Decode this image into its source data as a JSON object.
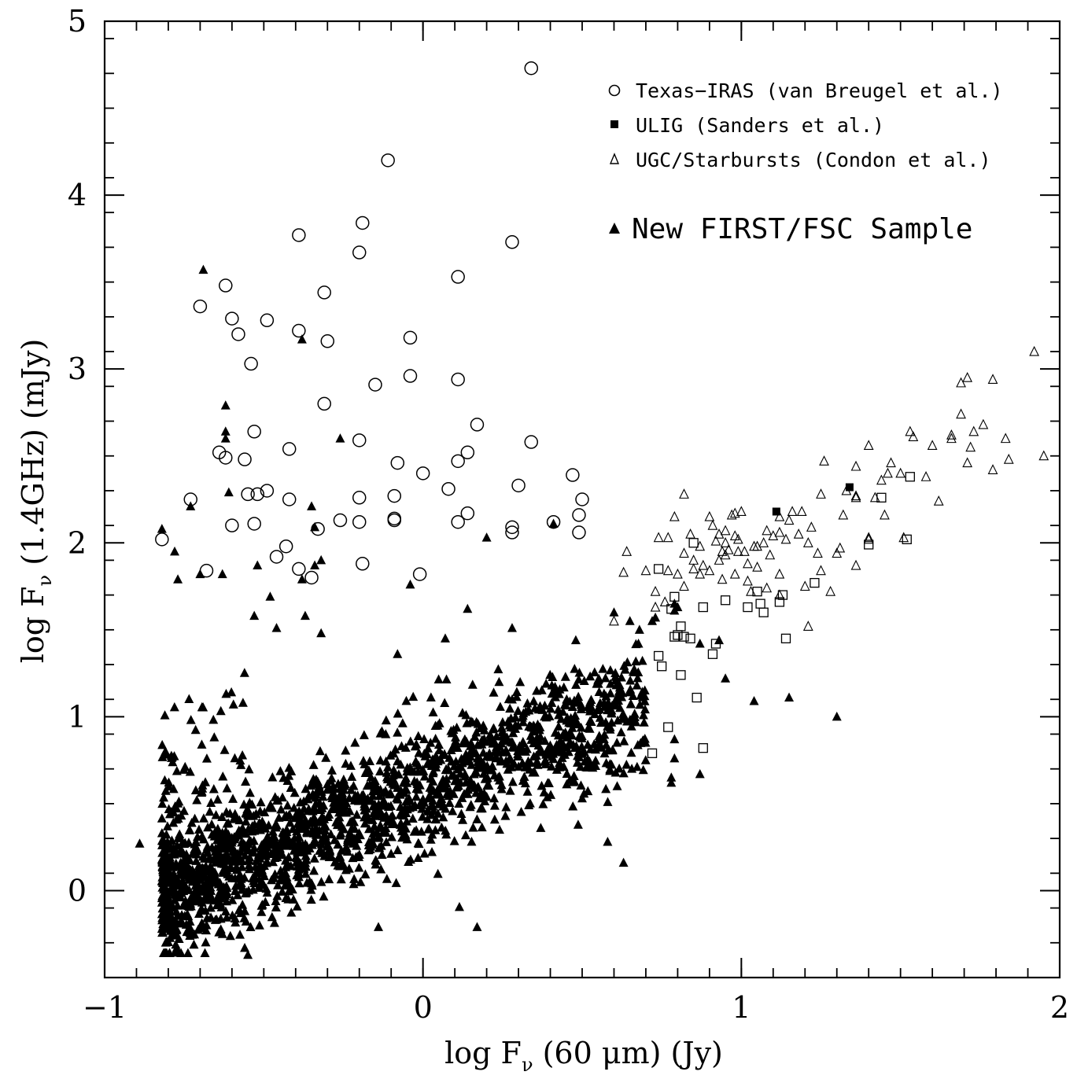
{
  "chart_data": {
    "type": "scatter",
    "xlabel_parts": [
      "log F",
      "ν",
      " (60 ",
      "μ",
      "m) (Jy)"
    ],
    "ylabel_parts": [
      "log F",
      "ν",
      " (1.4GHz) (mJy)"
    ],
    "xlim": [
      -1,
      2
    ],
    "ylim": [
      -0.5,
      5
    ],
    "x_ticks": [
      {
        "value": -1,
        "label": "−1"
      },
      {
        "value": 0,
        "label": "0"
      },
      {
        "value": 1,
        "label": "1"
      },
      {
        "value": 2,
        "label": "2"
      }
    ],
    "y_ticks": [
      {
        "value": 0,
        "label": "0"
      },
      {
        "value": 1,
        "label": "1"
      },
      {
        "value": 2,
        "label": "2"
      },
      {
        "value": 3,
        "label": "3"
      },
      {
        "value": 4,
        "label": "4"
      },
      {
        "value": 5,
        "label": "5"
      }
    ],
    "x_minor_step": 0.1,
    "y_minor_step": 0.2,
    "grid": false,
    "legend_placement": "top-right",
    "legend": [
      {
        "marker": "open-circle",
        "label": "Texas−IRAS (van Breugel et al.)"
      },
      {
        "marker": "filled-square",
        "label": "ULIG (Sanders et al.)"
      },
      {
        "marker": "open-triangle",
        "label": "UGC/Starbursts (Condon et al.)"
      },
      {
        "marker": "filled-triangle",
        "label": "New FIRST/FSC Sample"
      }
    ],
    "series": [
      {
        "name": "Texas−IRAS (van Breugel et al.)",
        "marker": "open-circle",
        "points": [
          [
            0.34,
            4.73
          ],
          [
            -0.11,
            4.2
          ],
          [
            -0.19,
            3.84
          ],
          [
            -0.39,
            3.77
          ],
          [
            0.28,
            3.73
          ],
          [
            -0.2,
            3.67
          ],
          [
            0.11,
            3.53
          ],
          [
            -0.62,
            3.48
          ],
          [
            -0.7,
            3.36
          ],
          [
            -0.31,
            3.44
          ],
          [
            -0.6,
            3.29
          ],
          [
            -0.49,
            3.28
          ],
          [
            -0.39,
            3.22
          ],
          [
            -0.58,
            3.2
          ],
          [
            -0.3,
            3.16
          ],
          [
            -0.04,
            3.18
          ],
          [
            -0.54,
            3.03
          ],
          [
            -0.04,
            2.96
          ],
          [
            0.11,
            2.94
          ],
          [
            -0.15,
            2.91
          ],
          [
            -0.31,
            2.8
          ],
          [
            0.17,
            2.68
          ],
          [
            -0.53,
            2.64
          ],
          [
            -0.64,
            2.52
          ],
          [
            -0.62,
            2.49
          ],
          [
            -0.2,
            2.59
          ],
          [
            0.34,
            2.58
          ],
          [
            0.14,
            2.52
          ],
          [
            -0.42,
            2.54
          ],
          [
            -0.56,
            2.48
          ],
          [
            0.11,
            2.47
          ],
          [
            -0.08,
            2.46
          ],
          [
            0.0,
            2.4
          ],
          [
            0.47,
            2.39
          ],
          [
            0.3,
            2.33
          ],
          [
            0.08,
            2.31
          ],
          [
            -0.49,
            2.3
          ],
          [
            -0.55,
            2.28
          ],
          [
            -0.52,
            2.28
          ],
          [
            -0.73,
            2.25
          ],
          [
            -0.42,
            2.25
          ],
          [
            -0.2,
            2.26
          ],
          [
            -0.09,
            2.27
          ],
          [
            0.5,
            2.25
          ],
          [
            0.14,
            2.17
          ],
          [
            0.49,
            2.16
          ],
          [
            -0.09,
            2.14
          ],
          [
            -0.09,
            2.13
          ],
          [
            -0.26,
            2.13
          ],
          [
            -0.2,
            2.12
          ],
          [
            0.11,
            2.12
          ],
          [
            0.41,
            2.12
          ],
          [
            -0.6,
            2.1
          ],
          [
            -0.53,
            2.11
          ],
          [
            -0.33,
            2.08
          ],
          [
            0.28,
            2.09
          ],
          [
            0.28,
            2.06
          ],
          [
            0.49,
            2.06
          ],
          [
            -0.82,
            2.02
          ],
          [
            -0.43,
            1.98
          ],
          [
            -0.46,
            1.92
          ],
          [
            -0.19,
            1.88
          ],
          [
            -0.68,
            1.84
          ],
          [
            -0.39,
            1.85
          ],
          [
            -0.35,
            1.8
          ],
          [
            -0.01,
            1.82
          ]
        ]
      },
      {
        "name": "ULIG (Sanders et al.)",
        "marker": "filled-square",
        "points": [
          [
            1.34,
            2.32
          ],
          [
            1.11,
            2.18
          ]
        ]
      },
      {
        "name": "",
        "marker": "open-square",
        "points": [
          [
            1.53,
            2.38
          ],
          [
            1.44,
            2.26
          ],
          [
            1.4,
            1.99
          ],
          [
            1.52,
            2.02
          ],
          [
            1.23,
            1.77
          ],
          [
            1.06,
            1.65
          ],
          [
            1.07,
            1.6
          ],
          [
            1.12,
            1.66
          ],
          [
            1.05,
            1.72
          ],
          [
            0.95,
            1.67
          ],
          [
            0.81,
            1.52
          ],
          [
            0.79,
            1.46
          ],
          [
            0.8,
            1.47
          ],
          [
            0.82,
            1.46
          ],
          [
            0.84,
            1.45
          ],
          [
            0.88,
            1.63
          ],
          [
            0.92,
            1.42
          ],
          [
            0.91,
            1.36
          ],
          [
            0.74,
            1.35
          ],
          [
            0.75,
            1.29
          ],
          [
            0.81,
            1.24
          ],
          [
            0.86,
            1.11
          ],
          [
            0.77,
            0.94
          ],
          [
            0.88,
            0.82
          ],
          [
            0.72,
            0.79
          ],
          [
            0.79,
            1.69
          ],
          [
            0.78,
            1.62
          ],
          [
            0.74,
            1.85
          ],
          [
            0.85,
            2.0
          ],
          [
            1.14,
            1.45
          ],
          [
            1.02,
            1.63
          ],
          [
            1.13,
            1.7
          ]
        ]
      },
      {
        "name": "UGC/Starbursts (Condon et al.)",
        "marker": "open-triangle",
        "points": [
          [
            1.92,
            3.1
          ],
          [
            1.71,
            2.95
          ],
          [
            1.79,
            2.94
          ],
          [
            1.69,
            2.92
          ],
          [
            1.69,
            2.74
          ],
          [
            1.76,
            2.68
          ],
          [
            1.53,
            2.64
          ],
          [
            1.66,
            2.6
          ],
          [
            1.73,
            2.64
          ],
          [
            1.83,
            2.6
          ],
          [
            1.54,
            2.61
          ],
          [
            1.6,
            2.56
          ],
          [
            1.66,
            2.62
          ],
          [
            1.72,
            2.55
          ],
          [
            1.4,
            2.56
          ],
          [
            1.47,
            2.46
          ],
          [
            1.95,
            2.5
          ],
          [
            1.26,
            2.47
          ],
          [
            1.36,
            2.44
          ],
          [
            1.5,
            2.4
          ],
          [
            1.84,
            2.48
          ],
          [
            1.71,
            2.46
          ],
          [
            1.79,
            2.42
          ],
          [
            1.44,
            2.36
          ],
          [
            1.46,
            2.4
          ],
          [
            1.33,
            2.3
          ],
          [
            1.25,
            2.28
          ],
          [
            1.36,
            2.27
          ],
          [
            1.62,
            2.24
          ],
          [
            0.82,
            2.28
          ],
          [
            1.42,
            2.26
          ],
          [
            1.45,
            2.16
          ],
          [
            1.32,
            2.16
          ],
          [
            1.4,
            2.03
          ],
          [
            1.36,
            2.26
          ],
          [
            1.19,
            2.18
          ],
          [
            1.16,
            2.18
          ],
          [
            1.12,
            2.15
          ],
          [
            0.98,
            2.17
          ],
          [
            1.0,
            2.18
          ],
          [
            0.97,
            2.16
          ],
          [
            0.9,
            2.15
          ],
          [
            0.79,
            2.15
          ],
          [
            0.74,
            2.03
          ],
          [
            0.77,
            2.03
          ],
          [
            0.82,
            1.94
          ],
          [
            0.84,
            2.05
          ],
          [
            0.87,
            1.98
          ],
          [
            0.88,
            1.87
          ],
          [
            0.9,
            1.84
          ],
          [
            0.93,
            2.05
          ],
          [
            0.95,
            2.0
          ],
          [
            0.96,
            1.96
          ],
          [
            0.98,
            2.04
          ],
          [
            1.01,
            1.95
          ],
          [
            1.04,
            1.98
          ],
          [
            1.07,
            2.0
          ],
          [
            1.1,
            2.04
          ],
          [
            1.14,
            2.02
          ],
          [
            1.18,
            2.05
          ],
          [
            1.21,
            2.0
          ],
          [
            1.24,
            1.94
          ],
          [
            1.31,
            1.97
          ],
          [
            1.02,
            1.88
          ],
          [
            1.05,
            1.86
          ],
          [
            1.09,
            1.93
          ],
          [
            1.12,
            1.82
          ],
          [
            1.02,
            1.78
          ],
          [
            0.98,
            1.82
          ],
          [
            0.94,
            1.79
          ],
          [
            0.87,
            1.82
          ],
          [
            0.82,
            1.75
          ],
          [
            0.77,
            1.84
          ],
          [
            0.7,
            1.84
          ],
          [
            0.63,
            1.83
          ],
          [
            0.64,
            1.95
          ],
          [
            0.73,
            1.72
          ],
          [
            0.76,
            1.66
          ],
          [
            0.73,
            1.63
          ],
          [
            1.03,
            1.72
          ],
          [
            1.08,
            1.74
          ],
          [
            1.12,
            1.7
          ],
          [
            1.2,
            1.75
          ],
          [
            1.28,
            1.72
          ],
          [
            1.36,
            1.87
          ],
          [
            1.21,
            1.52
          ],
          [
            0.6,
            1.55
          ],
          [
            1.3,
            1.94
          ],
          [
            1.22,
            2.09
          ],
          [
            1.15,
            2.13
          ],
          [
            1.08,
            2.07
          ],
          [
            0.93,
            1.9
          ],
          [
            0.95,
            1.93
          ],
          [
            0.99,
            1.95
          ],
          [
            1.05,
            1.98
          ],
          [
            0.94,
            1.95
          ],
          [
            0.85,
            1.9
          ],
          [
            0.91,
            2.1
          ],
          [
            0.95,
            2.07
          ],
          [
            0.99,
            2.02
          ],
          [
            1.12,
            2.06
          ],
          [
            1.25,
            1.84
          ],
          [
            1.4,
            2.02
          ],
          [
            0.85,
            1.85
          ],
          [
            0.8,
            1.82
          ],
          [
            1.51,
            2.03
          ],
          [
            1.58,
            2.38
          ],
          [
            0.92,
            2.01
          ]
        ]
      },
      {
        "name": "New FIRST/FSC Sample",
        "marker": "filled-triangle",
        "generated": true,
        "points": [
          [
            -0.69,
            3.57
          ],
          [
            -0.38,
            3.17
          ],
          [
            -0.62,
            2.79
          ],
          [
            -0.62,
            2.64
          ],
          [
            -0.62,
            2.6
          ],
          [
            -0.26,
            2.6
          ],
          [
            -0.61,
            2.29
          ],
          [
            -0.73,
            2.21
          ],
          [
            -0.35,
            2.21
          ],
          [
            -0.82,
            2.08
          ],
          [
            -0.34,
            2.09
          ],
          [
            0.41,
            2.11
          ],
          [
            0.2,
            2.03
          ],
          [
            -0.78,
            1.95
          ],
          [
            -0.32,
            1.9
          ],
          [
            -0.34,
            1.87
          ],
          [
            -0.52,
            1.87
          ],
          [
            -0.7,
            1.82
          ],
          [
            -0.63,
            1.82
          ],
          [
            -0.38,
            1.79
          ],
          [
            -0.77,
            1.79
          ],
          [
            -0.04,
            1.76
          ],
          [
            -0.48,
            1.69
          ],
          [
            0.6,
            1.6
          ],
          [
            0.65,
            1.55
          ],
          [
            0.72,
            1.55
          ],
          [
            0.14,
            1.62
          ],
          [
            -0.53,
            1.58
          ],
          [
            -0.37,
            1.58
          ],
          [
            -0.46,
            1.51
          ],
          [
            -0.32,
            1.48
          ],
          [
            -0.08,
            1.36
          ],
          [
            0.28,
            1.51
          ],
          [
            0.48,
            1.44
          ],
          [
            0.07,
            1.45
          ],
          [
            0.73,
            1.57
          ],
          [
            0.79,
            1.65
          ],
          [
            0.79,
            1.61
          ],
          [
            0.68,
            1.5
          ],
          [
            0.8,
            1.63
          ],
          [
            0.93,
            1.44
          ],
          [
            0.87,
            1.42
          ],
          [
            0.95,
            1.22
          ],
          [
            1.04,
            1.09
          ],
          [
            1.15,
            1.11
          ],
          [
            1.3,
            1.0
          ],
          [
            0.79,
            0.87
          ],
          [
            0.78,
            0.65
          ],
          [
            0.78,
            0.62
          ],
          [
            0.79,
            0.76
          ],
          [
            0.87,
            0.67
          ],
          [
            0.61,
            0.6
          ],
          [
            0.58,
            0.28
          ],
          [
            0.63,
            0.16
          ],
          [
            0.5,
            0.53
          ],
          [
            0.37,
            0.36
          ],
          [
            0.17,
            -0.21
          ],
          [
            -0.14,
            -0.21
          ],
          [
            -0.89,
            0.27
          ],
          [
            -0.82,
            -0.22
          ],
          [
            -0.56,
            -0.33
          ],
          [
            -0.63,
            -0.25
          ],
          [
            -0.55,
            -0.37
          ],
          [
            -0.22,
            0.27
          ],
          [
            0.29,
            0.93
          ]
        ]
      }
    ]
  }
}
